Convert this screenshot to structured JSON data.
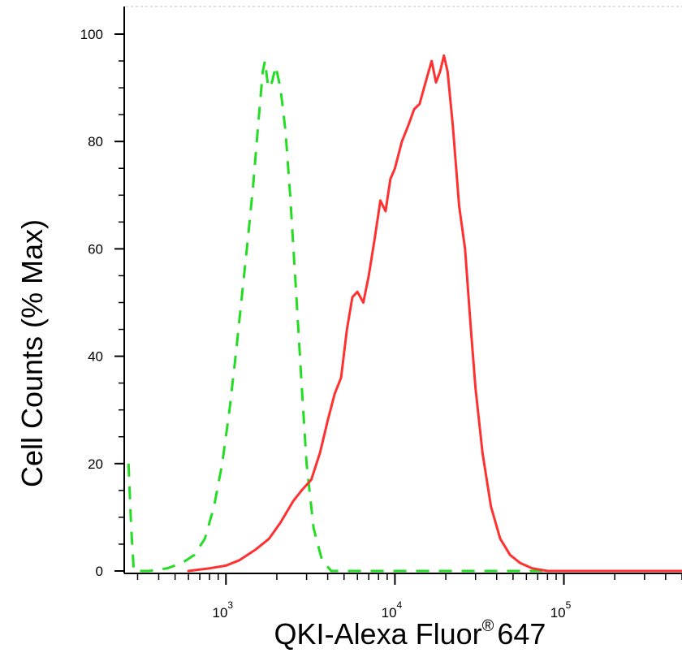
{
  "chart_data": {
    "type": "line",
    "title": "",
    "xlabel": "QKI-Alexa Fluor",
    "xlabel_mark": "®",
    "xlabel_suffix": "647",
    "ylabel": "Cell Counts (% Max)",
    "xscale": "log",
    "xlim": [
      250,
      500000
    ],
    "ylim": [
      0,
      100
    ],
    "yticks": [
      0,
      20,
      40,
      60,
      80,
      100
    ],
    "xticks": [
      {
        "value": 1000,
        "base": "10",
        "exp": "3"
      },
      {
        "value": 10000,
        "base": "10",
        "exp": "4"
      },
      {
        "value": 100000,
        "base": "10",
        "exp": "5"
      }
    ],
    "grid": false,
    "series": [
      {
        "color": "#22dd22",
        "style": "dashed",
        "points": [
          [
            265,
            20
          ],
          [
            275,
            8
          ],
          [
            285,
            0
          ],
          [
            350,
            0
          ],
          [
            450,
            0.5
          ],
          [
            550,
            1.5
          ],
          [
            650,
            3
          ],
          [
            750,
            6
          ],
          [
            850,
            12
          ],
          [
            950,
            20
          ],
          [
            1050,
            30
          ],
          [
            1150,
            41
          ],
          [
            1250,
            52
          ],
          [
            1350,
            62
          ],
          [
            1450,
            72
          ],
          [
            1550,
            83
          ],
          [
            1650,
            93
          ],
          [
            1700,
            95
          ],
          [
            1780,
            90
          ],
          [
            1870,
            91
          ],
          [
            1970,
            94
          ],
          [
            2100,
            90
          ],
          [
            2250,
            82
          ],
          [
            2400,
            70
          ],
          [
            2600,
            52
          ],
          [
            2800,
            35
          ],
          [
            3000,
            20
          ],
          [
            3300,
            8
          ],
          [
            3700,
            2
          ],
          [
            4200,
            0
          ],
          [
            6000,
            0
          ],
          [
            200000,
            0
          ],
          [
            500000,
            0
          ]
        ]
      },
      {
        "color": "#ff3030",
        "style": "solid",
        "points": [
          [
            600,
            0
          ],
          [
            800,
            0.5
          ],
          [
            1000,
            1
          ],
          [
            1200,
            2
          ],
          [
            1500,
            4
          ],
          [
            1800,
            6
          ],
          [
            2100,
            9
          ],
          [
            2500,
            13
          ],
          [
            2800,
            15
          ],
          [
            3200,
            17
          ],
          [
            3600,
            22
          ],
          [
            4000,
            28
          ],
          [
            4400,
            33
          ],
          [
            4800,
            36
          ],
          [
            5200,
            45
          ],
          [
            5600,
            51
          ],
          [
            6000,
            52
          ],
          [
            6500,
            50
          ],
          [
            7000,
            55
          ],
          [
            7600,
            62
          ],
          [
            8200,
            69
          ],
          [
            8800,
            67
          ],
          [
            9400,
            73
          ],
          [
            10000,
            75
          ],
          [
            11000,
            80
          ],
          [
            12000,
            83
          ],
          [
            13000,
            86
          ],
          [
            14000,
            87
          ],
          [
            15500,
            92
          ],
          [
            16500,
            95
          ],
          [
            17500,
            91
          ],
          [
            18500,
            93
          ],
          [
            19500,
            96
          ],
          [
            20500,
            93
          ],
          [
            22000,
            83
          ],
          [
            24000,
            68
          ],
          [
            26000,
            60
          ],
          [
            28000,
            46
          ],
          [
            30000,
            34
          ],
          [
            33000,
            22
          ],
          [
            37000,
            12
          ],
          [
            42000,
            6
          ],
          [
            48000,
            3
          ],
          [
            55000,
            1.5
          ],
          [
            65000,
            0.5
          ],
          [
            80000,
            0
          ],
          [
            500000,
            0
          ]
        ]
      }
    ]
  }
}
